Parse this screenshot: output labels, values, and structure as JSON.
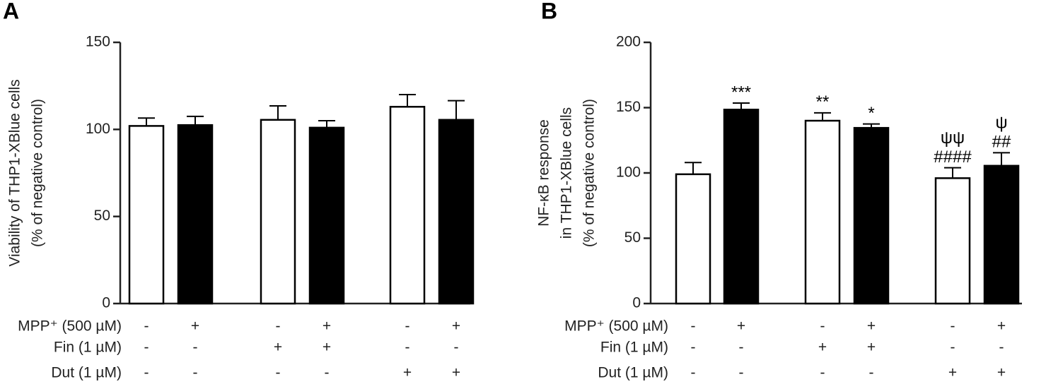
{
  "chart_data": [
    {
      "type": "bar",
      "panel": "A",
      "ylabel": [
        "Viability of THP1-XBlue cells",
        "(% of negative control)"
      ],
      "values": [
        102,
        102.5,
        105.5,
        101,
        113,
        105.5
      ],
      "error": [
        4.5,
        5,
        8,
        4,
        7,
        11
      ],
      "colors": [
        "#ffffff",
        "#000000",
        "#ffffff",
        "#000000",
        "#ffffff",
        "#000000"
      ],
      "annotations": [
        [],
        [],
        [],
        [],
        [],
        []
      ],
      "conditions": [
        {
          "name": "MPP⁺ (500 µM)",
          "signs": [
            "-",
            "+",
            "-",
            "+",
            "-",
            "+"
          ]
        },
        {
          "name": "Fin (1 µM)",
          "signs": [
            "-",
            "-",
            "+",
            "+",
            "-",
            "-"
          ]
        },
        {
          "name": "Dut (1 µM)",
          "signs": [
            "-",
            "-",
            "-",
            "-",
            "+",
            "+"
          ]
        }
      ],
      "ylim": [
        0,
        150
      ],
      "yticks": [
        0,
        50,
        100,
        150
      ]
    },
    {
      "type": "bar",
      "panel": "B",
      "ylabel": [
        "NF-κB response",
        "in THP1-XBlue cells",
        "(% of negative control)"
      ],
      "values": [
        99,
        148.5,
        140,
        134.5,
        96,
        105.5
      ],
      "error": [
        9,
        5,
        6,
        3,
        8,
        10
      ],
      "colors": [
        "#ffffff",
        "#000000",
        "#ffffff",
        "#000000",
        "#ffffff",
        "#000000"
      ],
      "annotations": [
        [],
        [
          "***"
        ],
        [
          "**"
        ],
        [
          "*"
        ],
        [
          "ψψ",
          "####"
        ],
        [
          "ψ",
          "##"
        ]
      ],
      "conditions": [
        {
          "name": "MPP⁺ (500 µM)",
          "signs": [
            "-",
            "+",
            "-",
            "+",
            "-",
            "+"
          ]
        },
        {
          "name": "Fin (1 µM)",
          "signs": [
            "-",
            "-",
            "+",
            "+",
            "-",
            "-"
          ]
        },
        {
          "name": "Dut (1 µM)",
          "signs": [
            "-",
            "-",
            "-",
            "-",
            "+",
            "+"
          ]
        }
      ],
      "ylim": [
        0,
        200
      ],
      "yticks": [
        0,
        50,
        100,
        150,
        200
      ]
    }
  ]
}
